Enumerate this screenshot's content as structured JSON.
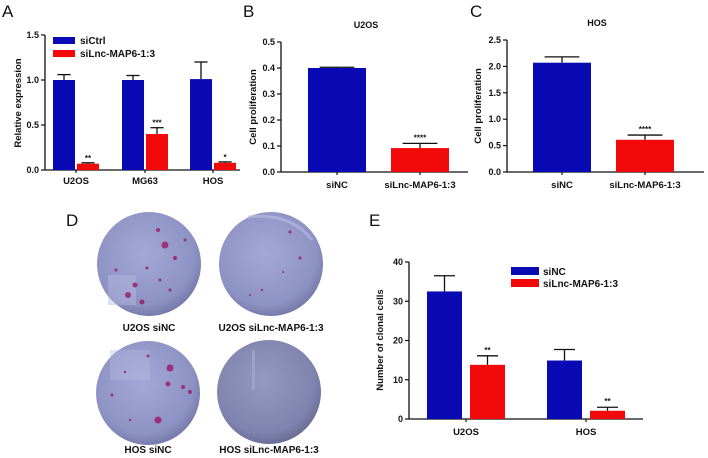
{
  "colors": {
    "blue": "#0a0ab4",
    "red": "#f20a0a",
    "axis": "#111111",
    "dish": "#8d92c4",
    "dish_dark": "#7c80b0",
    "colony": "#9a1f6a"
  },
  "panels": {
    "A": {
      "letter": "A"
    },
    "B": {
      "letter": "B"
    },
    "C": {
      "letter": "C"
    },
    "D": {
      "letter": "D"
    },
    "E": {
      "letter": "E"
    }
  },
  "dishes": [
    {
      "label": "U2OS siNC",
      "colonies": "many"
    },
    {
      "label": "U2OS siLnc-MAP6-1:3",
      "colonies": "few"
    },
    {
      "label": "HOS siNC",
      "colonies": "many"
    },
    {
      "label": "HOS siLnc-MAP6-1:3",
      "colonies": "none"
    }
  ],
  "chart_data": [
    {
      "id": "A",
      "type": "bar",
      "title": "",
      "xlabel": "",
      "ylabel": "Relative expression",
      "ylim": [
        0,
        1.5
      ],
      "yticks": [
        "0.0",
        "0.5",
        "1.0",
        "1.5"
      ],
      "ytick_values": [
        0,
        0.5,
        1.0,
        1.5
      ],
      "categories": [
        "U2OS",
        "MG63",
        "HOS"
      ],
      "legend": "top-left",
      "series": [
        {
          "name": "siCtrl",
          "color": "#0a0ab4",
          "values": [
            1.0,
            1.0,
            1.01
          ],
          "errors": [
            0.06,
            0.05,
            0.19
          ],
          "sig": [
            "",
            "",
            ""
          ]
        },
        {
          "name": "siLnc-MAP6-1:3",
          "color": "#f20a0a",
          "values": [
            0.07,
            0.4,
            0.08
          ],
          "errors": [
            0.01,
            0.07,
            0.01
          ],
          "sig": [
            "**",
            "***",
            "*"
          ]
        }
      ]
    },
    {
      "id": "B",
      "type": "bar",
      "title": "U2OS",
      "xlabel": "",
      "ylabel": "Cell proliferation",
      "ylim": [
        0,
        0.5
      ],
      "yticks": [
        "0.0",
        "0.1",
        "0.2",
        "0.3",
        "0.4",
        "0.5"
      ],
      "ytick_values": [
        0,
        0.1,
        0.2,
        0.3,
        0.4,
        0.5
      ],
      "categories": [
        "siNC",
        "siLnc-MAP6-1:3"
      ],
      "values": [
        0.4,
        0.092
      ],
      "errors": [
        0.003,
        0.018
      ],
      "colors": [
        "#0a0ab4",
        "#f20a0a"
      ],
      "sig": [
        "",
        "****"
      ]
    },
    {
      "id": "C",
      "type": "bar",
      "title": "HOS",
      "xlabel": "",
      "ylabel": "Cell proliferation",
      "ylim": [
        0,
        2.5
      ],
      "yticks": [
        "0.0",
        "0.5",
        "1.0",
        "1.5",
        "2.0",
        "2.5"
      ],
      "ytick_values": [
        0,
        0.5,
        1.0,
        1.5,
        2.0,
        2.5
      ],
      "categories": [
        "siNC",
        "siLnc-MAP6-1:3"
      ],
      "values": [
        2.07,
        0.61
      ],
      "errors": [
        0.11,
        0.09
      ],
      "colors": [
        "#0a0ab4",
        "#f20a0a"
      ],
      "sig": [
        "",
        "****"
      ]
    },
    {
      "id": "E",
      "type": "bar",
      "title": "",
      "xlabel": "",
      "ylabel": "Number of clonal cells",
      "ylim": [
        0,
        40
      ],
      "yticks": [
        "0",
        "10",
        "20",
        "30",
        "40"
      ],
      "ytick_values": [
        0,
        10,
        20,
        30,
        40
      ],
      "categories": [
        "U2OS",
        "HOS"
      ],
      "legend": "top-right",
      "series": [
        {
          "name": "siNC",
          "color": "#0a0ab4",
          "values": [
            32.5,
            14.9
          ],
          "errors": [
            4.0,
            2.8
          ],
          "sig": [
            "",
            ""
          ]
        },
        {
          "name": "siLnc-MAP6-1:3",
          "color": "#f20a0a",
          "values": [
            13.8,
            2.1
          ],
          "errors": [
            2.3,
            0.9
          ],
          "sig": [
            "**",
            "**"
          ]
        }
      ]
    }
  ]
}
